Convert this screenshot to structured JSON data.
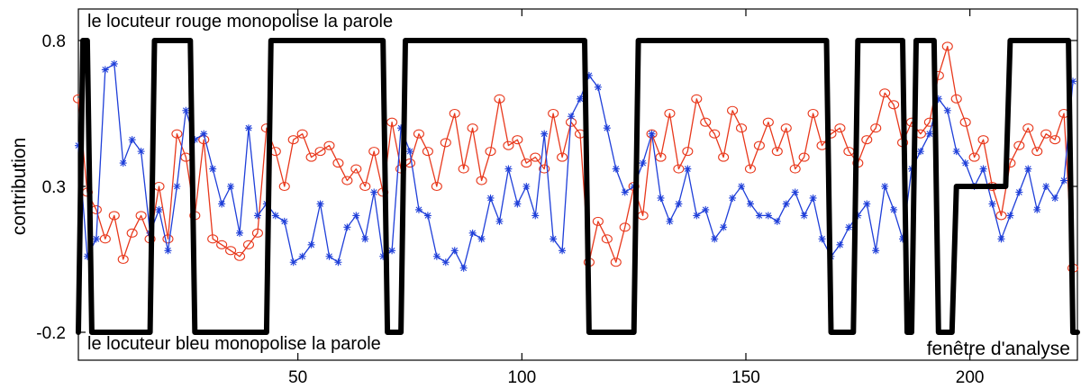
{
  "chart_data": {
    "type": "line",
    "title": "",
    "xlabel": "fenêtre d'analyse",
    "ylabel": "contribution",
    "xlim": [
      1,
      224
    ],
    "ylim": [
      -0.2,
      0.8
    ],
    "xticks": [
      50,
      100,
      150,
      200
    ],
    "yticks": [
      -0.2,
      0.3,
      0.8
    ],
    "xtick_labels": [
      "50",
      "100",
      "150",
      "200"
    ],
    "ytick_labels": [
      "-0.2",
      "0.3",
      "0.8"
    ],
    "grid": false,
    "legend": "none",
    "annotations": [
      {
        "text": "le locuteur rouge monopolise la parole",
        "position": "top-left"
      },
      {
        "text": "le locuteur bleu monopolise la parole",
        "position": "bottom-left"
      }
    ],
    "series": [
      {
        "color": "#e8381c",
        "marker": "circle",
        "x": [
          1,
          3,
          5,
          7,
          9,
          11,
          13,
          15,
          17,
          19,
          21,
          23,
          25,
          27,
          29,
          31,
          33,
          35,
          37,
          39,
          41,
          43,
          45,
          47,
          49,
          51,
          53,
          55,
          57,
          59,
          61,
          63,
          65,
          67,
          69,
          71,
          73,
          75,
          77,
          79,
          81,
          83,
          85,
          87,
          89,
          91,
          93,
          95,
          97,
          99,
          101,
          103,
          105,
          107,
          109,
          111,
          113,
          115,
          117,
          119,
          121,
          123,
          125,
          127,
          129,
          131,
          133,
          135,
          137,
          139,
          141,
          143,
          145,
          147,
          149,
          151,
          153,
          155,
          157,
          159,
          161,
          163,
          165,
          167,
          169,
          171,
          173,
          175,
          177,
          179,
          181,
          183,
          185,
          187,
          189,
          191,
          193,
          195,
          197,
          199,
          201,
          203,
          205,
          207,
          209,
          211,
          213,
          215,
          217,
          219,
          221,
          223
        ],
        "values": [
          0.6,
          0.28,
          0.22,
          0.12,
          0.2,
          0.05,
          0.14,
          0.2,
          0.12,
          0.3,
          0.12,
          0.48,
          0.4,
          0.2,
          0.46,
          0.12,
          0.1,
          0.08,
          0.06,
          0.1,
          0.14,
          0.5,
          0.42,
          0.3,
          0.46,
          0.48,
          0.4,
          0.42,
          0.44,
          0.38,
          0.32,
          0.36,
          0.3,
          0.42,
          0.28,
          0.52,
          0.36,
          0.38,
          0.48,
          0.42,
          0.3,
          0.45,
          0.55,
          0.36,
          0.5,
          0.32,
          0.42,
          0.6,
          0.44,
          0.46,
          0.38,
          0.4,
          0.36,
          0.55,
          0.4,
          0.52,
          0.48,
          0.04,
          0.18,
          0.12,
          0.04,
          0.16,
          0.3,
          0.2,
          0.48,
          0.4,
          0.55,
          0.36,
          0.42,
          0.6,
          0.52,
          0.48,
          0.4,
          0.56,
          0.5,
          0.36,
          0.44,
          0.52,
          0.42,
          0.5,
          0.36,
          0.4,
          0.55,
          0.44,
          0.48,
          0.5,
          0.42,
          0.38,
          0.46,
          0.5,
          0.62,
          0.58,
          0.45,
          0.52,
          0.48,
          0.52,
          0.68,
          0.78,
          0.6,
          0.52,
          0.4,
          0.46,
          0.3,
          0.2,
          0.38,
          0.44,
          0.5,
          0.42,
          0.48,
          0.46,
          0.55,
          0.02
        ]
      },
      {
        "color": "#1f3fd9",
        "marker": "star",
        "x": [
          1,
          3,
          5,
          7,
          9,
          11,
          13,
          15,
          17,
          19,
          21,
          23,
          25,
          27,
          29,
          31,
          33,
          35,
          37,
          39,
          41,
          43,
          45,
          47,
          49,
          51,
          53,
          55,
          57,
          59,
          61,
          63,
          65,
          67,
          69,
          71,
          73,
          75,
          77,
          79,
          81,
          83,
          85,
          87,
          89,
          91,
          93,
          95,
          97,
          99,
          101,
          103,
          105,
          107,
          109,
          111,
          113,
          115,
          117,
          119,
          121,
          123,
          125,
          127,
          129,
          131,
          133,
          135,
          137,
          139,
          141,
          143,
          145,
          147,
          149,
          151,
          153,
          155,
          157,
          159,
          161,
          163,
          165,
          167,
          169,
          171,
          173,
          175,
          177,
          179,
          181,
          183,
          185,
          187,
          189,
          191,
          193,
          195,
          197,
          199,
          201,
          203,
          205,
          207,
          209,
          211,
          213,
          215,
          217,
          219,
          221,
          223
        ],
        "values": [
          0.44,
          0.06,
          0.12,
          0.7,
          0.72,
          0.38,
          0.46,
          0.42,
          0.14,
          0.22,
          0.08,
          0.3,
          0.56,
          0.46,
          0.48,
          0.36,
          0.24,
          0.3,
          0.14,
          0.5,
          0.2,
          0.24,
          0.2,
          0.18,
          0.04,
          0.06,
          0.1,
          0.24,
          0.06,
          0.04,
          0.16,
          0.2,
          0.12,
          0.28,
          0.06,
          0.08,
          0.5,
          0.42,
          0.22,
          0.2,
          0.06,
          0.04,
          0.08,
          0.02,
          0.14,
          0.12,
          0.26,
          0.18,
          0.36,
          0.24,
          0.3,
          0.2,
          0.48,
          0.12,
          0.08,
          0.54,
          0.6,
          0.68,
          0.64,
          0.5,
          0.36,
          0.28,
          0.3,
          0.38,
          0.48,
          0.26,
          0.18,
          0.24,
          0.36,
          0.2,
          0.22,
          0.12,
          0.16,
          0.26,
          0.3,
          0.24,
          0.2,
          0.2,
          0.18,
          0.24,
          0.28,
          0.2,
          0.26,
          0.12,
          0.06,
          0.1,
          0.16,
          0.2,
          0.24,
          0.08,
          0.3,
          0.22,
          0.12,
          0.36,
          0.42,
          0.48,
          0.6,
          0.56,
          0.42,
          0.38,
          0.3,
          0.36,
          0.24,
          0.12,
          0.2,
          0.28,
          0.36,
          0.22,
          0.3,
          0.26,
          0.32,
          0.66
        ]
      },
      {
        "color": "#000000",
        "marker": "none",
        "x": [
          1,
          2,
          3,
          4,
          5,
          6,
          17,
          18,
          19,
          25,
          26,
          27,
          42,
          43,
          44,
          68,
          69,
          70,
          73,
          74,
          75,
          114,
          115,
          116,
          125,
          126,
          127,
          167,
          168,
          169,
          173,
          174,
          175,
          184,
          185,
          186,
          187,
          188,
          189,
          192,
          193,
          194,
          196,
          197,
          198,
          199,
          208,
          209,
          210,
          211,
          222,
          223,
          224
        ],
        "values": [
          -0.2,
          0.8,
          0.8,
          -0.2,
          -0.2,
          -0.2,
          -0.2,
          0.8,
          0.8,
          0.8,
          0.8,
          -0.2,
          -0.2,
          -0.2,
          0.8,
          0.8,
          0.8,
          -0.2,
          -0.2,
          0.8,
          0.8,
          0.8,
          -0.2,
          -0.2,
          -0.2,
          0.8,
          0.8,
          0.8,
          0.8,
          -0.2,
          -0.2,
          -0.2,
          0.8,
          0.8,
          0.8,
          -0.2,
          -0.2,
          0.8,
          0.8,
          0.8,
          -0.2,
          -0.2,
          -0.2,
          0.3,
          0.3,
          0.3,
          0.3,
          0.8,
          0.8,
          0.8,
          0.8,
          -0.2,
          -0.2
        ]
      }
    ]
  }
}
